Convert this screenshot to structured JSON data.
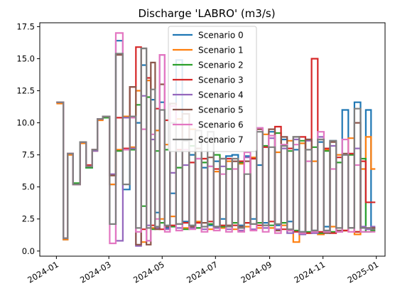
{
  "chart_data": {
    "type": "line",
    "title": "Discharge 'LABRO' (m3/s)",
    "xlabel": "",
    "ylabel": "",
    "xlim": [
      "2023-12-13",
      "2025-01-11"
    ],
    "ylim": [
      -0.4,
      17.8
    ],
    "yticks": [
      0.0,
      2.5,
      5.0,
      7.5,
      10.0,
      12.5,
      15.0,
      17.5
    ],
    "ytick_labels": [
      "0.0",
      "2.5",
      "5.0",
      "7.5",
      "10.0",
      "12.5",
      "15.0",
      "17.5"
    ],
    "xticks": [
      "2024-01-01",
      "2024-03-01",
      "2024-05-01",
      "2024-07-01",
      "2024-09-01",
      "2024-11-01",
      "2025-01-01"
    ],
    "xtick_labels": [
      "2024-01",
      "2024-03",
      "2024-05",
      "2024-07",
      "2024-09",
      "2024-11",
      "2025-01"
    ],
    "grid": false,
    "legend_position": "upper center",
    "step": true,
    "series": [
      {
        "name": "Scenario 0",
        "color": "#1f77b4",
        "x": [
          "2024-01-01",
          "2024-01-09",
          "2024-01-14",
          "2024-01-20",
          "2024-01-28",
          "2024-02-04",
          "2024-02-11",
          "2024-02-17",
          "2024-02-23",
          "2024-03-02",
          "2024-03-09",
          "2024-03-17",
          "2024-03-25",
          "2024-04-01",
          "2024-04-07",
          "2024-04-13",
          "2024-04-18",
          "2024-04-23",
          "2024-04-28",
          "2024-05-04",
          "2024-05-10",
          "2024-05-17",
          "2024-05-24",
          "2024-06-01",
          "2024-06-08",
          "2024-06-15",
          "2024-06-22",
          "2024-06-29",
          "2024-07-06",
          "2024-07-13",
          "2024-07-20",
          "2024-07-27",
          "2024-08-03",
          "2024-08-10",
          "2024-08-17",
          "2024-08-24",
          "2024-08-31",
          "2024-09-07",
          "2024-09-14",
          "2024-09-21",
          "2024-09-28",
          "2024-10-05",
          "2024-10-12",
          "2024-10-19",
          "2024-10-26",
          "2024-11-02",
          "2024-11-09",
          "2024-11-16",
          "2024-11-23",
          "2024-11-30",
          "2024-12-07",
          "2024-12-14",
          "2024-12-20",
          "2024-12-26"
        ],
        "y": [
          11.6,
          0.9,
          7.6,
          5.2,
          8.5,
          6.5,
          7.9,
          10.3,
          10.5,
          5.2,
          16.4,
          4.8,
          10.5,
          10.0,
          14.5,
          0.8,
          11.8,
          3.0,
          11.6,
          1.8,
          4.5,
          14.9,
          2.3,
          7.5,
          1.8,
          6.5,
          2.0,
          7.0,
          2.5,
          7.4,
          7.5,
          2.0,
          7.4,
          2.5,
          6.7,
          2.2,
          9.3,
          2.0,
          8.7,
          2.3,
          7.9,
          1.5,
          8.7,
          1.6,
          8.5,
          1.9,
          8.6,
          1.5,
          11.0,
          1.8,
          11.6,
          1.5,
          11.0,
          1.8
        ]
      },
      {
        "name": "Scenario 1",
        "color": "#ff7f0e",
        "x": [
          "2024-01-01",
          "2024-01-09",
          "2024-01-14",
          "2024-01-20",
          "2024-01-28",
          "2024-02-04",
          "2024-02-11",
          "2024-02-17",
          "2024-02-23",
          "2024-03-02",
          "2024-03-09",
          "2024-03-17",
          "2024-03-25",
          "2024-04-01",
          "2024-04-07",
          "2024-04-13",
          "2024-04-18",
          "2024-04-23",
          "2024-04-28",
          "2024-05-04",
          "2024-05-10",
          "2024-05-17",
          "2024-05-24",
          "2024-06-01",
          "2024-06-08",
          "2024-06-15",
          "2024-06-22",
          "2024-06-29",
          "2024-07-06",
          "2024-07-13",
          "2024-07-20",
          "2024-07-27",
          "2024-08-03",
          "2024-08-10",
          "2024-08-17",
          "2024-08-24",
          "2024-08-31",
          "2024-09-07",
          "2024-09-14",
          "2024-09-21",
          "2024-09-28",
          "2024-10-05",
          "2024-10-12",
          "2024-10-19",
          "2024-10-26",
          "2024-11-02",
          "2024-11-09",
          "2024-11-16",
          "2024-11-23",
          "2024-11-30",
          "2024-12-07",
          "2024-12-14",
          "2024-12-20",
          "2024-12-26"
        ],
        "y": [
          11.5,
          0.9,
          7.5,
          5.2,
          8.4,
          6.6,
          7.8,
          10.2,
          10.4,
          5.2,
          7.9,
          10.5,
          8.1,
          12.5,
          0.7,
          13.3,
          1.8,
          9.4,
          2.5,
          8.3,
          2.7,
          10.3,
          1.8,
          9.5,
          2.3,
          7.2,
          1.7,
          6.2,
          1.8,
          7.0,
          1.7,
          6.8,
          1.9,
          7.3,
          1.8,
          9.1,
          1.8,
          7.7,
          2.0,
          8.6,
          0.7,
          8.4,
          1.4,
          7.0,
          1.3,
          7.9,
          1.9,
          7.5,
          1.6,
          8.8,
          1.3,
          6.4,
          8.9,
          6.4
        ]
      },
      {
        "name": "Scenario 2",
        "color": "#2ca02c",
        "x": [
          "2024-01-01",
          "2024-01-09",
          "2024-01-14",
          "2024-01-20",
          "2024-01-28",
          "2024-02-04",
          "2024-02-11",
          "2024-02-17",
          "2024-02-23",
          "2024-03-02",
          "2024-03-09",
          "2024-03-17",
          "2024-03-25",
          "2024-04-01",
          "2024-04-07",
          "2024-04-13",
          "2024-04-18",
          "2024-04-23",
          "2024-04-28",
          "2024-05-04",
          "2024-05-10",
          "2024-05-17",
          "2024-05-24",
          "2024-06-01",
          "2024-06-08",
          "2024-06-15",
          "2024-06-22",
          "2024-06-29",
          "2024-07-06",
          "2024-07-13",
          "2024-07-20",
          "2024-07-27",
          "2024-08-03",
          "2024-08-10",
          "2024-08-17",
          "2024-08-24",
          "2024-08-31",
          "2024-09-07",
          "2024-09-14",
          "2024-09-21",
          "2024-09-28",
          "2024-10-05",
          "2024-10-12",
          "2024-10-19",
          "2024-10-26",
          "2024-11-02",
          "2024-11-09",
          "2024-11-16",
          "2024-11-23",
          "2024-11-30",
          "2024-12-07",
          "2024-12-14",
          "2024-12-20",
          "2024-12-26"
        ],
        "y": [
          11.6,
          1.0,
          7.6,
          5.3,
          8.5,
          6.5,
          7.9,
          10.3,
          10.4,
          5.9,
          7.8,
          10.4,
          7.9,
          11.4,
          3.5,
          12.0,
          1.7,
          7.8,
          2.2,
          7.9,
          1.9,
          6.5,
          1.7,
          8.2,
          1.8,
          6.9,
          2.1,
          7.5,
          1.9,
          6.4,
          2.2,
          6.9,
          2.2,
          7.2,
          2.2,
          8.2,
          2.0,
          9.2,
          2.2,
          7.8,
          1.6,
          8.6,
          1.5,
          8.1,
          1.4,
          7.8,
          1.5,
          6.9,
          1.6,
          7.5,
          1.5,
          7.2,
          1.5,
          1.6
        ]
      },
      {
        "name": "Scenario 3",
        "color": "#d62728",
        "x": [
          "2024-01-01",
          "2024-01-09",
          "2024-01-14",
          "2024-01-20",
          "2024-01-28",
          "2024-02-04",
          "2024-02-11",
          "2024-02-17",
          "2024-02-23",
          "2024-03-02",
          "2024-03-09",
          "2024-03-17",
          "2024-03-25",
          "2024-04-01",
          "2024-04-07",
          "2024-04-13",
          "2024-04-18",
          "2024-04-23",
          "2024-04-28",
          "2024-05-04",
          "2024-05-10",
          "2024-05-17",
          "2024-05-24",
          "2024-06-01",
          "2024-06-08",
          "2024-06-15",
          "2024-06-22",
          "2024-06-29",
          "2024-07-06",
          "2024-07-13",
          "2024-07-20",
          "2024-07-27",
          "2024-08-03",
          "2024-08-10",
          "2024-08-17",
          "2024-08-24",
          "2024-08-31",
          "2024-09-07",
          "2024-09-14",
          "2024-09-21",
          "2024-09-28",
          "2024-10-05",
          "2024-10-12",
          "2024-10-19",
          "2024-10-26",
          "2024-11-02",
          "2024-11-09",
          "2024-11-16",
          "2024-11-23",
          "2024-11-30",
          "2024-12-07",
          "2024-12-14",
          "2024-12-20",
          "2024-12-26"
        ],
        "y": [
          11.6,
          1.0,
          7.6,
          5.2,
          8.5,
          6.7,
          7.9,
          10.3,
          10.5,
          5.9,
          10.4,
          8.0,
          12.8,
          15.9,
          1.7,
          13.5,
          2.0,
          11.1,
          1.7,
          10.2,
          2.0,
          7.9,
          2.2,
          6.9,
          2.2,
          7.2,
          2.3,
          6.4,
          2.0,
          7.2,
          2.0,
          7.0,
          2.2,
          7.2,
          2.0,
          8.1,
          2.3,
          9.7,
          1.7,
          8.0,
          1.5,
          8.9,
          1.4,
          15.0,
          1.5,
          8.0,
          1.4,
          7.3,
          1.6,
          7.6,
          1.5,
          7.0,
          3.8,
          3.8
        ]
      },
      {
        "name": "Scenario 4",
        "color": "#9467bd",
        "x": [
          "2024-01-01",
          "2024-01-09",
          "2024-01-14",
          "2024-01-20",
          "2024-01-28",
          "2024-02-04",
          "2024-02-11",
          "2024-02-17",
          "2024-02-23",
          "2024-03-02",
          "2024-03-09",
          "2024-03-17",
          "2024-03-25",
          "2024-04-01",
          "2024-04-07",
          "2024-04-13",
          "2024-04-18",
          "2024-04-23",
          "2024-04-28",
          "2024-05-04",
          "2024-05-10",
          "2024-05-17",
          "2024-05-24",
          "2024-06-01",
          "2024-06-08",
          "2024-06-15",
          "2024-06-22",
          "2024-06-29",
          "2024-07-06",
          "2024-07-13",
          "2024-07-20",
          "2024-07-27",
          "2024-08-03",
          "2024-08-10",
          "2024-08-17",
          "2024-08-24",
          "2024-08-31",
          "2024-09-07",
          "2024-09-14",
          "2024-09-21",
          "2024-09-28",
          "2024-10-05",
          "2024-10-12",
          "2024-10-19",
          "2024-10-26",
          "2024-11-02",
          "2024-11-09",
          "2024-11-16",
          "2024-11-23",
          "2024-11-30",
          "2024-12-07",
          "2024-12-14",
          "2024-12-20",
          "2024-12-26"
        ],
        "y": [
          11.6,
          1.0,
          7.6,
          5.2,
          8.5,
          6.6,
          7.8,
          10.3,
          10.5,
          6.0,
          0.8,
          10.4,
          8.0,
          0.4,
          12.1,
          2.0,
          8.7,
          1.8,
          15.3,
          1.7,
          6.1,
          1.8,
          6.7,
          1.8,
          7.2,
          1.7,
          6.6,
          1.8,
          6.6,
          1.7,
          7.0,
          1.6,
          7.3,
          1.7,
          9.6,
          1.8,
          8.8,
          1.7,
          8.0,
          1.4,
          8.7,
          1.3,
          8.6,
          1.4,
          8.9,
          1.6,
          8.2,
          1.5,
          7.5,
          1.8,
          8.0,
          1.9,
          1.7,
          1.9
        ]
      },
      {
        "name": "Scenario 5",
        "color": "#8c564b",
        "x": [
          "2024-01-01",
          "2024-01-09",
          "2024-01-14",
          "2024-01-20",
          "2024-01-28",
          "2024-02-04",
          "2024-02-11",
          "2024-02-17",
          "2024-02-23",
          "2024-03-02",
          "2024-03-09",
          "2024-03-17",
          "2024-03-25",
          "2024-04-01",
          "2024-04-07",
          "2024-04-13",
          "2024-04-18",
          "2024-04-23",
          "2024-04-28",
          "2024-05-04",
          "2024-05-10",
          "2024-05-17",
          "2024-05-24",
          "2024-06-01",
          "2024-06-08",
          "2024-06-15",
          "2024-06-22",
          "2024-06-29",
          "2024-07-06",
          "2024-07-13",
          "2024-07-20",
          "2024-07-27",
          "2024-08-03",
          "2024-08-10",
          "2024-08-17",
          "2024-08-24",
          "2024-08-31",
          "2024-09-07",
          "2024-09-14",
          "2024-09-21",
          "2024-09-28",
          "2024-10-05",
          "2024-10-12",
          "2024-10-19",
          "2024-10-26",
          "2024-11-02",
          "2024-11-09",
          "2024-11-16",
          "2024-11-23",
          "2024-11-30",
          "2024-12-07",
          "2024-12-14",
          "2024-12-20",
          "2024-12-26"
        ],
        "y": [
          11.6,
          1.0,
          7.6,
          5.2,
          8.5,
          6.6,
          7.9,
          10.3,
          10.5,
          5.9,
          15.3,
          7.9,
          12.8,
          0.5,
          15.8,
          0.5,
          14.7,
          1.7,
          13.0,
          1.9,
          11.5,
          2.1,
          10.7,
          1.9,
          8.0,
          2.2,
          7.3,
          1.9,
          7.2,
          2.0,
          7.0,
          1.9,
          7.0,
          2.1,
          9.5,
          2.0,
          9.5,
          1.6,
          8.9,
          1.6,
          8.9,
          1.4,
          8.7,
          1.6,
          8.7,
          1.4,
          8.5,
          1.6,
          7.6,
          1.8,
          10.0,
          1.8,
          1.8,
          1.8
        ]
      },
      {
        "name": "Scenario 6",
        "color": "#e377c2",
        "x": [
          "2024-01-01",
          "2024-01-09",
          "2024-01-14",
          "2024-01-20",
          "2024-01-28",
          "2024-02-04",
          "2024-02-11",
          "2024-02-17",
          "2024-02-23",
          "2024-03-02",
          "2024-03-09",
          "2024-03-17",
          "2024-03-25",
          "2024-04-01",
          "2024-04-07",
          "2024-04-13",
          "2024-04-18",
          "2024-04-23",
          "2024-04-28",
          "2024-05-04",
          "2024-05-10",
          "2024-05-17",
          "2024-05-24",
          "2024-06-01",
          "2024-06-08",
          "2024-06-15",
          "2024-06-22",
          "2024-06-29",
          "2024-07-06",
          "2024-07-13",
          "2024-07-20",
          "2024-07-27",
          "2024-08-03",
          "2024-08-10",
          "2024-08-17",
          "2024-08-24",
          "2024-08-31",
          "2024-09-07",
          "2024-09-14",
          "2024-09-21",
          "2024-09-28",
          "2024-10-05",
          "2024-10-12",
          "2024-10-19",
          "2024-10-26",
          "2024-11-02",
          "2024-11-09",
          "2024-11-16",
          "2024-11-23",
          "2024-11-30",
          "2024-12-07",
          "2024-12-14",
          "2024-12-20",
          "2024-12-26"
        ],
        "y": [
          11.6,
          1.0,
          7.6,
          5.2,
          8.5,
          6.6,
          7.9,
          10.3,
          10.5,
          0.6,
          17.0,
          7.9,
          10.4,
          1.5,
          9.5,
          0.8,
          9.1,
          2.5,
          15.3,
          1.5,
          11.3,
          1.6,
          7.9,
          1.7,
          7.2,
          1.5,
          6.6,
          1.6,
          6.0,
          1.5,
          6.4,
          1.5,
          7.7,
          1.6,
          9.6,
          1.5,
          9.0,
          1.4,
          8.3,
          1.6,
          8.3,
          1.4,
          7.0,
          1.5,
          9.3,
          1.5,
          6.4,
          1.5,
          8.7,
          1.5,
          6.7,
          1.5,
          1.5,
          1.5
        ]
      },
      {
        "name": "Scenario 7",
        "color": "#7f7f7f",
        "x": [
          "2024-01-01",
          "2024-01-09",
          "2024-01-14",
          "2024-01-20",
          "2024-01-28",
          "2024-02-04",
          "2024-02-11",
          "2024-02-17",
          "2024-02-23",
          "2024-03-02",
          "2024-03-09",
          "2024-03-17",
          "2024-03-25",
          "2024-04-01",
          "2024-04-07",
          "2024-04-13",
          "2024-04-18",
          "2024-04-23",
          "2024-04-28",
          "2024-05-04",
          "2024-05-10",
          "2024-05-17",
          "2024-05-24",
          "2024-06-01",
          "2024-06-08",
          "2024-06-15",
          "2024-06-22",
          "2024-06-29",
          "2024-07-06",
          "2024-07-13",
          "2024-07-20",
          "2024-07-27",
          "2024-08-03",
          "2024-08-10",
          "2024-08-17",
          "2024-08-24",
          "2024-08-31",
          "2024-09-07",
          "2024-09-14",
          "2024-09-21",
          "2024-09-28",
          "2024-10-05",
          "2024-10-12",
          "2024-10-19",
          "2024-10-26",
          "2024-11-02",
          "2024-11-09",
          "2024-11-16",
          "2024-11-23",
          "2024-11-30",
          "2024-12-07",
          "2024-12-14",
          "2024-12-20",
          "2024-12-26"
        ],
        "y": [
          11.6,
          1.0,
          7.6,
          5.2,
          8.5,
          6.6,
          7.9,
          10.3,
          10.5,
          2.1,
          15.4,
          5.2,
          10.5,
          1.8,
          15.8,
          1.8,
          12.6,
          1.9,
          11.0,
          2.0,
          10.0,
          2.1,
          8.6,
          2.0,
          9.4,
          1.9,
          9.3,
          1.9,
          7.2,
          1.9,
          7.2,
          1.8,
          6.0,
          2.1,
          9.3,
          2.0,
          8.1,
          2.1,
          8.2,
          1.7,
          8.9,
          1.5,
          7.9,
          1.6,
          8.7,
          1.6,
          8.6,
          1.8,
          7.5,
          1.8,
          11.1,
          1.8,
          1.8,
          1.7
        ]
      }
    ]
  }
}
